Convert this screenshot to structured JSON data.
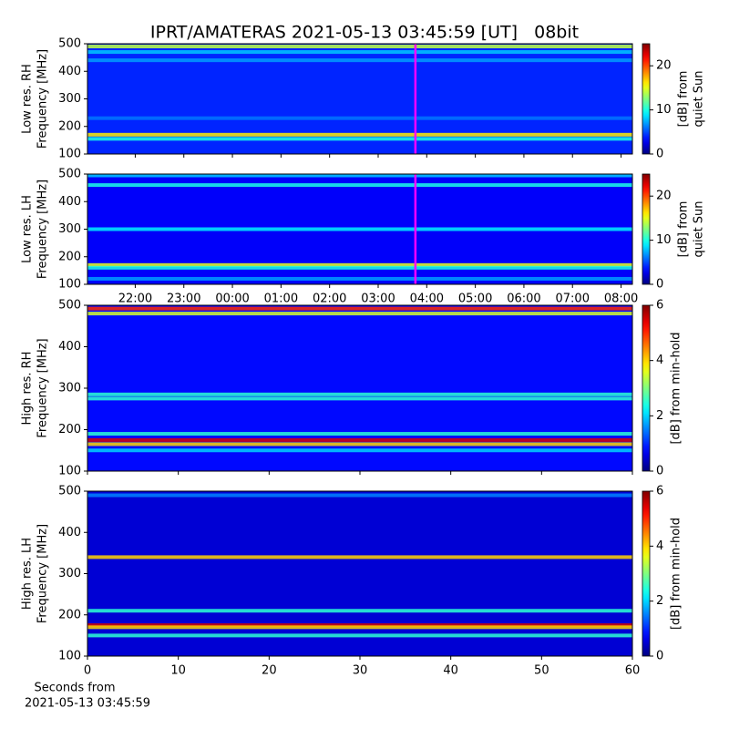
{
  "title": "IPRT/AMATERAS 2021-05-13 03:45:59 [UT]   08bit",
  "xlabel": [
    "Seconds from",
    "2021-05-13 03:45:59"
  ],
  "colormap": "jet",
  "chart_data": [
    {
      "type": "heatmap",
      "ylabel": [
        "Low res. RH",
        "Frequency [MHz]"
      ],
      "ylim": [
        100,
        500
      ],
      "yticks": [
        100,
        200,
        300,
        400,
        500
      ],
      "xlim": [
        "21:01",
        "08:14"
      ],
      "xticks": [
        "22:00",
        "23:00",
        "00:00",
        "01:00",
        "02:00",
        "03:00",
        "04:00",
        "05:00",
        "06:00",
        "07:00",
        "08:00"
      ],
      "xtick_labels": false,
      "marker": "03:46",
      "marker_color": "#ff00ff",
      "clim": [
        0,
        25
      ],
      "cticks": [
        0,
        10,
        20
      ],
      "colorbar_label": [
        "[dB] from",
        "quiet Sun"
      ],
      "background": 4,
      "band_freqs": [
        490,
        470,
        440,
        230,
        170,
        155
      ],
      "band_levels": [
        14,
        8,
        7,
        6,
        16,
        10
      ]
    },
    {
      "type": "heatmap",
      "ylabel": [
        "Low res. LH",
        "Frequency [MHz]"
      ],
      "ylim": [
        100,
        500
      ],
      "yticks": [
        100,
        200,
        300,
        400,
        500
      ],
      "xlim": [
        "21:01",
        "08:14"
      ],
      "xticks": [
        "22:00",
        "23:00",
        "00:00",
        "01:00",
        "02:00",
        "03:00",
        "04:00",
        "05:00",
        "06:00",
        "07:00",
        "08:00"
      ],
      "xtick_labels": true,
      "marker": "03:46",
      "marker_color": "#ff00ff",
      "clim": [
        0,
        25
      ],
      "cticks": [
        0,
        10,
        20
      ],
      "colorbar_label": [
        "[dB] from",
        "quiet Sun"
      ],
      "background": 3,
      "band_freqs": [
        495,
        460,
        300,
        170,
        160,
        120
      ],
      "band_levels": [
        8,
        10,
        9,
        15,
        10,
        7
      ]
    },
    {
      "type": "heatmap",
      "ylabel": [
        "High res. RH",
        "Frequency [MHz]"
      ],
      "ylim": [
        100,
        500
      ],
      "yticks": [
        100,
        200,
        300,
        400,
        500
      ],
      "xlim": [
        0,
        60
      ],
      "xticks": [
        0,
        10,
        20,
        30,
        40,
        50,
        60
      ],
      "xtick_labels": false,
      "clim": [
        0,
        6
      ],
      "cticks": [
        0,
        2,
        4,
        6
      ],
      "colorbar_label": [
        "[dB] from min-hold"
      ],
      "background": 0.8,
      "band_freqs": [
        492,
        480,
        285,
        275,
        190,
        175,
        165,
        150
      ],
      "band_levels": [
        5,
        3.5,
        2.5,
        2.5,
        2.5,
        5.5,
        4,
        2
      ]
    },
    {
      "type": "heatmap",
      "ylabel": [
        "High res. LH",
        "Frequency [MHz]"
      ],
      "ylim": [
        100,
        500
      ],
      "yticks": [
        100,
        200,
        300,
        400,
        500
      ],
      "xlim": [
        0,
        60
      ],
      "xticks": [
        0,
        10,
        20,
        30,
        40,
        50,
        60
      ],
      "xtick_labels": true,
      "clim": [
        0,
        6
      ],
      "cticks": [
        0,
        2,
        4,
        6
      ],
      "colorbar_label": [
        "[dB] from min-hold"
      ],
      "background": 0.5,
      "band_freqs": [
        490,
        340,
        210,
        175,
        170,
        150
      ],
      "band_levels": [
        1.5,
        4,
        2.5,
        5.5,
        4,
        2.5
      ]
    }
  ]
}
